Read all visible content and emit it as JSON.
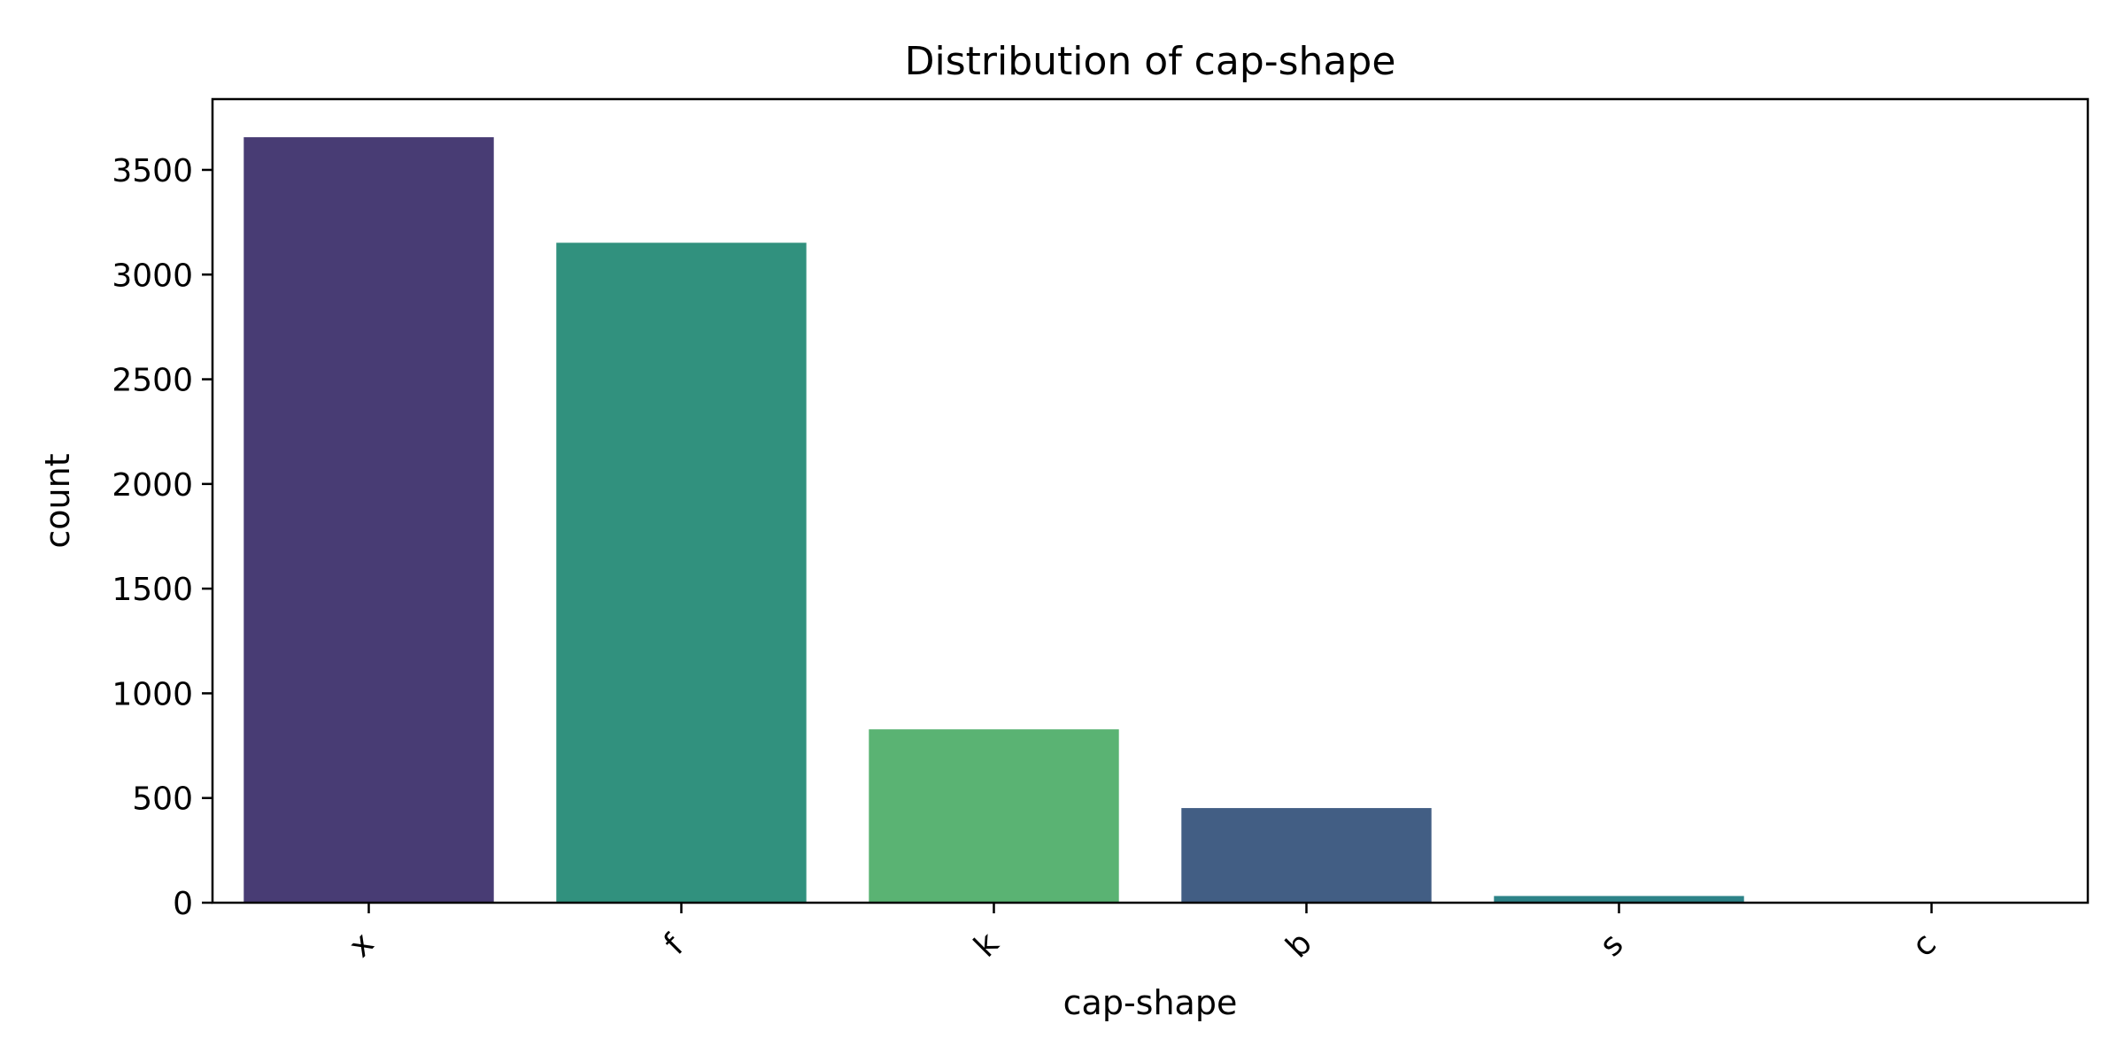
{
  "chart_data": {
    "type": "bar",
    "title": "Distribution of cap-shape",
    "xlabel": "cap-shape",
    "ylabel": "count",
    "categories": [
      "x",
      "f",
      "k",
      "b",
      "s",
      "c"
    ],
    "values": [
      3656,
      3152,
      828,
      452,
      32,
      4
    ],
    "colors": [
      "#483c74",
      "#31917e",
      "#5ab373",
      "#425e84",
      "#2d8388",
      "#3cab6f"
    ],
    "yticks": [
      0,
      500,
      1000,
      1500,
      2000,
      2500,
      3000,
      3500
    ],
    "ylim": [
      0,
      3838
    ],
    "grid": false,
    "legend": "none",
    "xtick_rotation": -45
  }
}
